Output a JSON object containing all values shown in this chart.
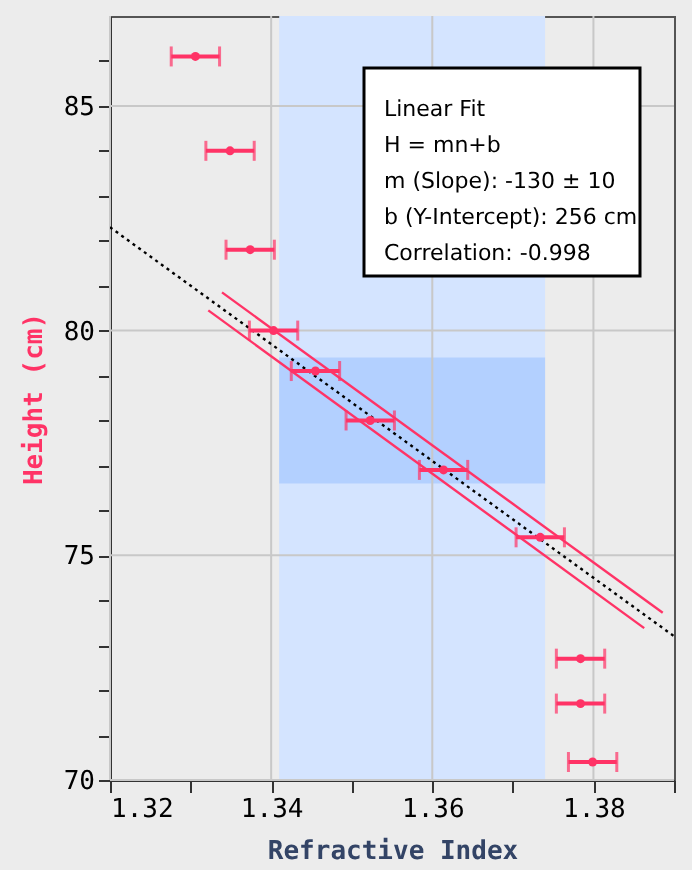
{
  "chart_data": {
    "type": "scatter",
    "xlabel": "Refractive Index",
    "ylabel": "Height (cm)",
    "xlim": [
      1.32,
      1.39
    ],
    "ylim": [
      70,
      87
    ],
    "xticks": [
      1.32,
      {
        "value": 1.33,
        "label": null
      },
      1.34,
      {
        "value": 1.35,
        "label": null
      },
      1.36,
      {
        "value": 1.37,
        "label": null
      },
      1.38,
      {
        "value": 1.39,
        "label": null
      }
    ],
    "yticks": [
      70,
      {
        "value": 71,
        "label": null
      },
      {
        "value": 72,
        "label": null
      },
      {
        "value": 73,
        "label": null
      },
      {
        "value": 74,
        "label": null
      },
      75,
      {
        "value": 76,
        "label": null
      },
      {
        "value": 77,
        "label": null
      },
      {
        "value": 78,
        "label": null
      },
      {
        "value": 79,
        "label": null
      },
      80,
      {
        "value": 81,
        "label": null
      },
      {
        "value": 82,
        "label": null
      },
      {
        "value": 83,
        "label": null
      },
      {
        "value": 84,
        "label": null
      },
      85,
      {
        "value": 86,
        "label": null
      }
    ],
    "grid": true,
    "marker": "circle",
    "bands": [
      {
        "axis": "x",
        "from": 1.341,
        "to": 1.374,
        "color": "#d4e4ff"
      },
      {
        "axis": "y",
        "from": 76.6,
        "to": 79.4,
        "color": "#b3d0ff"
      }
    ],
    "series": [
      {
        "type": "line",
        "x": [
          1.32,
          1.39
        ],
        "values": [
          82.3,
          73.2
        ],
        "color": "#000000",
        "line_style": "dotted",
        "marker": "none"
      },
      {
        "type": "line",
        "x": [
          1.3339,
          1.3886
        ],
        "values": [
          80.85,
          73.72
        ],
        "color": "#ff3366",
        "line_style": "solid",
        "marker": "none"
      },
      {
        "type": "line",
        "x": [
          1.3322,
          1.3863
        ],
        "values": [
          80.45,
          73.38
        ],
        "color": "#ff3366",
        "line_style": "solid",
        "marker": "none"
      },
      {
        "x": [
          1.3306,
          1.3349,
          1.3374,
          1.3403,
          1.3455,
          1.3523,
          1.3614,
          1.3734,
          1.3784,
          1.3784,
          1.3799
        ],
        "values": [
          86.1,
          84.0,
          81.8,
          80.0,
          79.1,
          78.0,
          76.9,
          75.4,
          72.7,
          71.7,
          70.4
        ],
        "xerrors": [
          0.003,
          0.003,
          0.003,
          0.003,
          0.003,
          0.003,
          0.003,
          0.003,
          0.003,
          0.003,
          0.003
        ],
        "color": "#ff3366"
      }
    ],
    "annotations": [
      "Linear Fit",
      "H = mn+b",
      "m (Slope): -130 ± 10",
      "b (Y-Intercept): 256 cm",
      "Correlation: -0.998"
    ]
  }
}
